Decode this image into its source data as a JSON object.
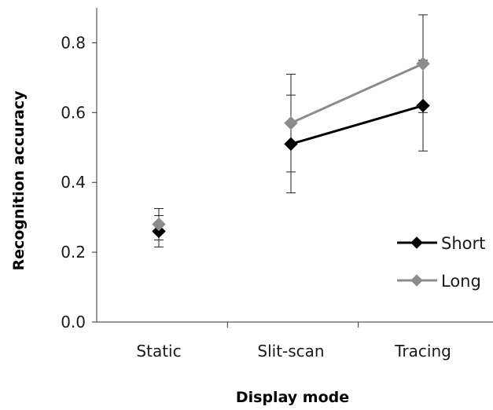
{
  "chart_data": {
    "type": "line",
    "title": "",
    "xlabel": "Display mode",
    "ylabel": "Recognition accuracy",
    "categories": [
      "Static",
      "Slit-scan",
      "Tracing"
    ],
    "ylim": [
      0,
      0.9
    ],
    "yticks": [
      0.0,
      0.2,
      0.4,
      0.6,
      0.8
    ],
    "ytick_labels": [
      "0.0",
      "0.2",
      "0.4",
      "0.6",
      "0.8"
    ],
    "grid": false,
    "legend_position": "right",
    "series": [
      {
        "name": "Short",
        "color": "#000000",
        "marker": "diamond",
        "values": [
          0.26,
          0.51,
          0.62
        ],
        "connect": [
          false,
          true,
          true
        ],
        "error": [
          0.045,
          0.14,
          0.13
        ]
      },
      {
        "name": "Long",
        "color": "#8c8c8c",
        "marker": "diamond",
        "values": [
          0.28,
          0.57,
          0.74
        ],
        "connect": [
          false,
          true,
          true
        ],
        "error": [
          0.045,
          0.14,
          0.14
        ]
      }
    ]
  }
}
